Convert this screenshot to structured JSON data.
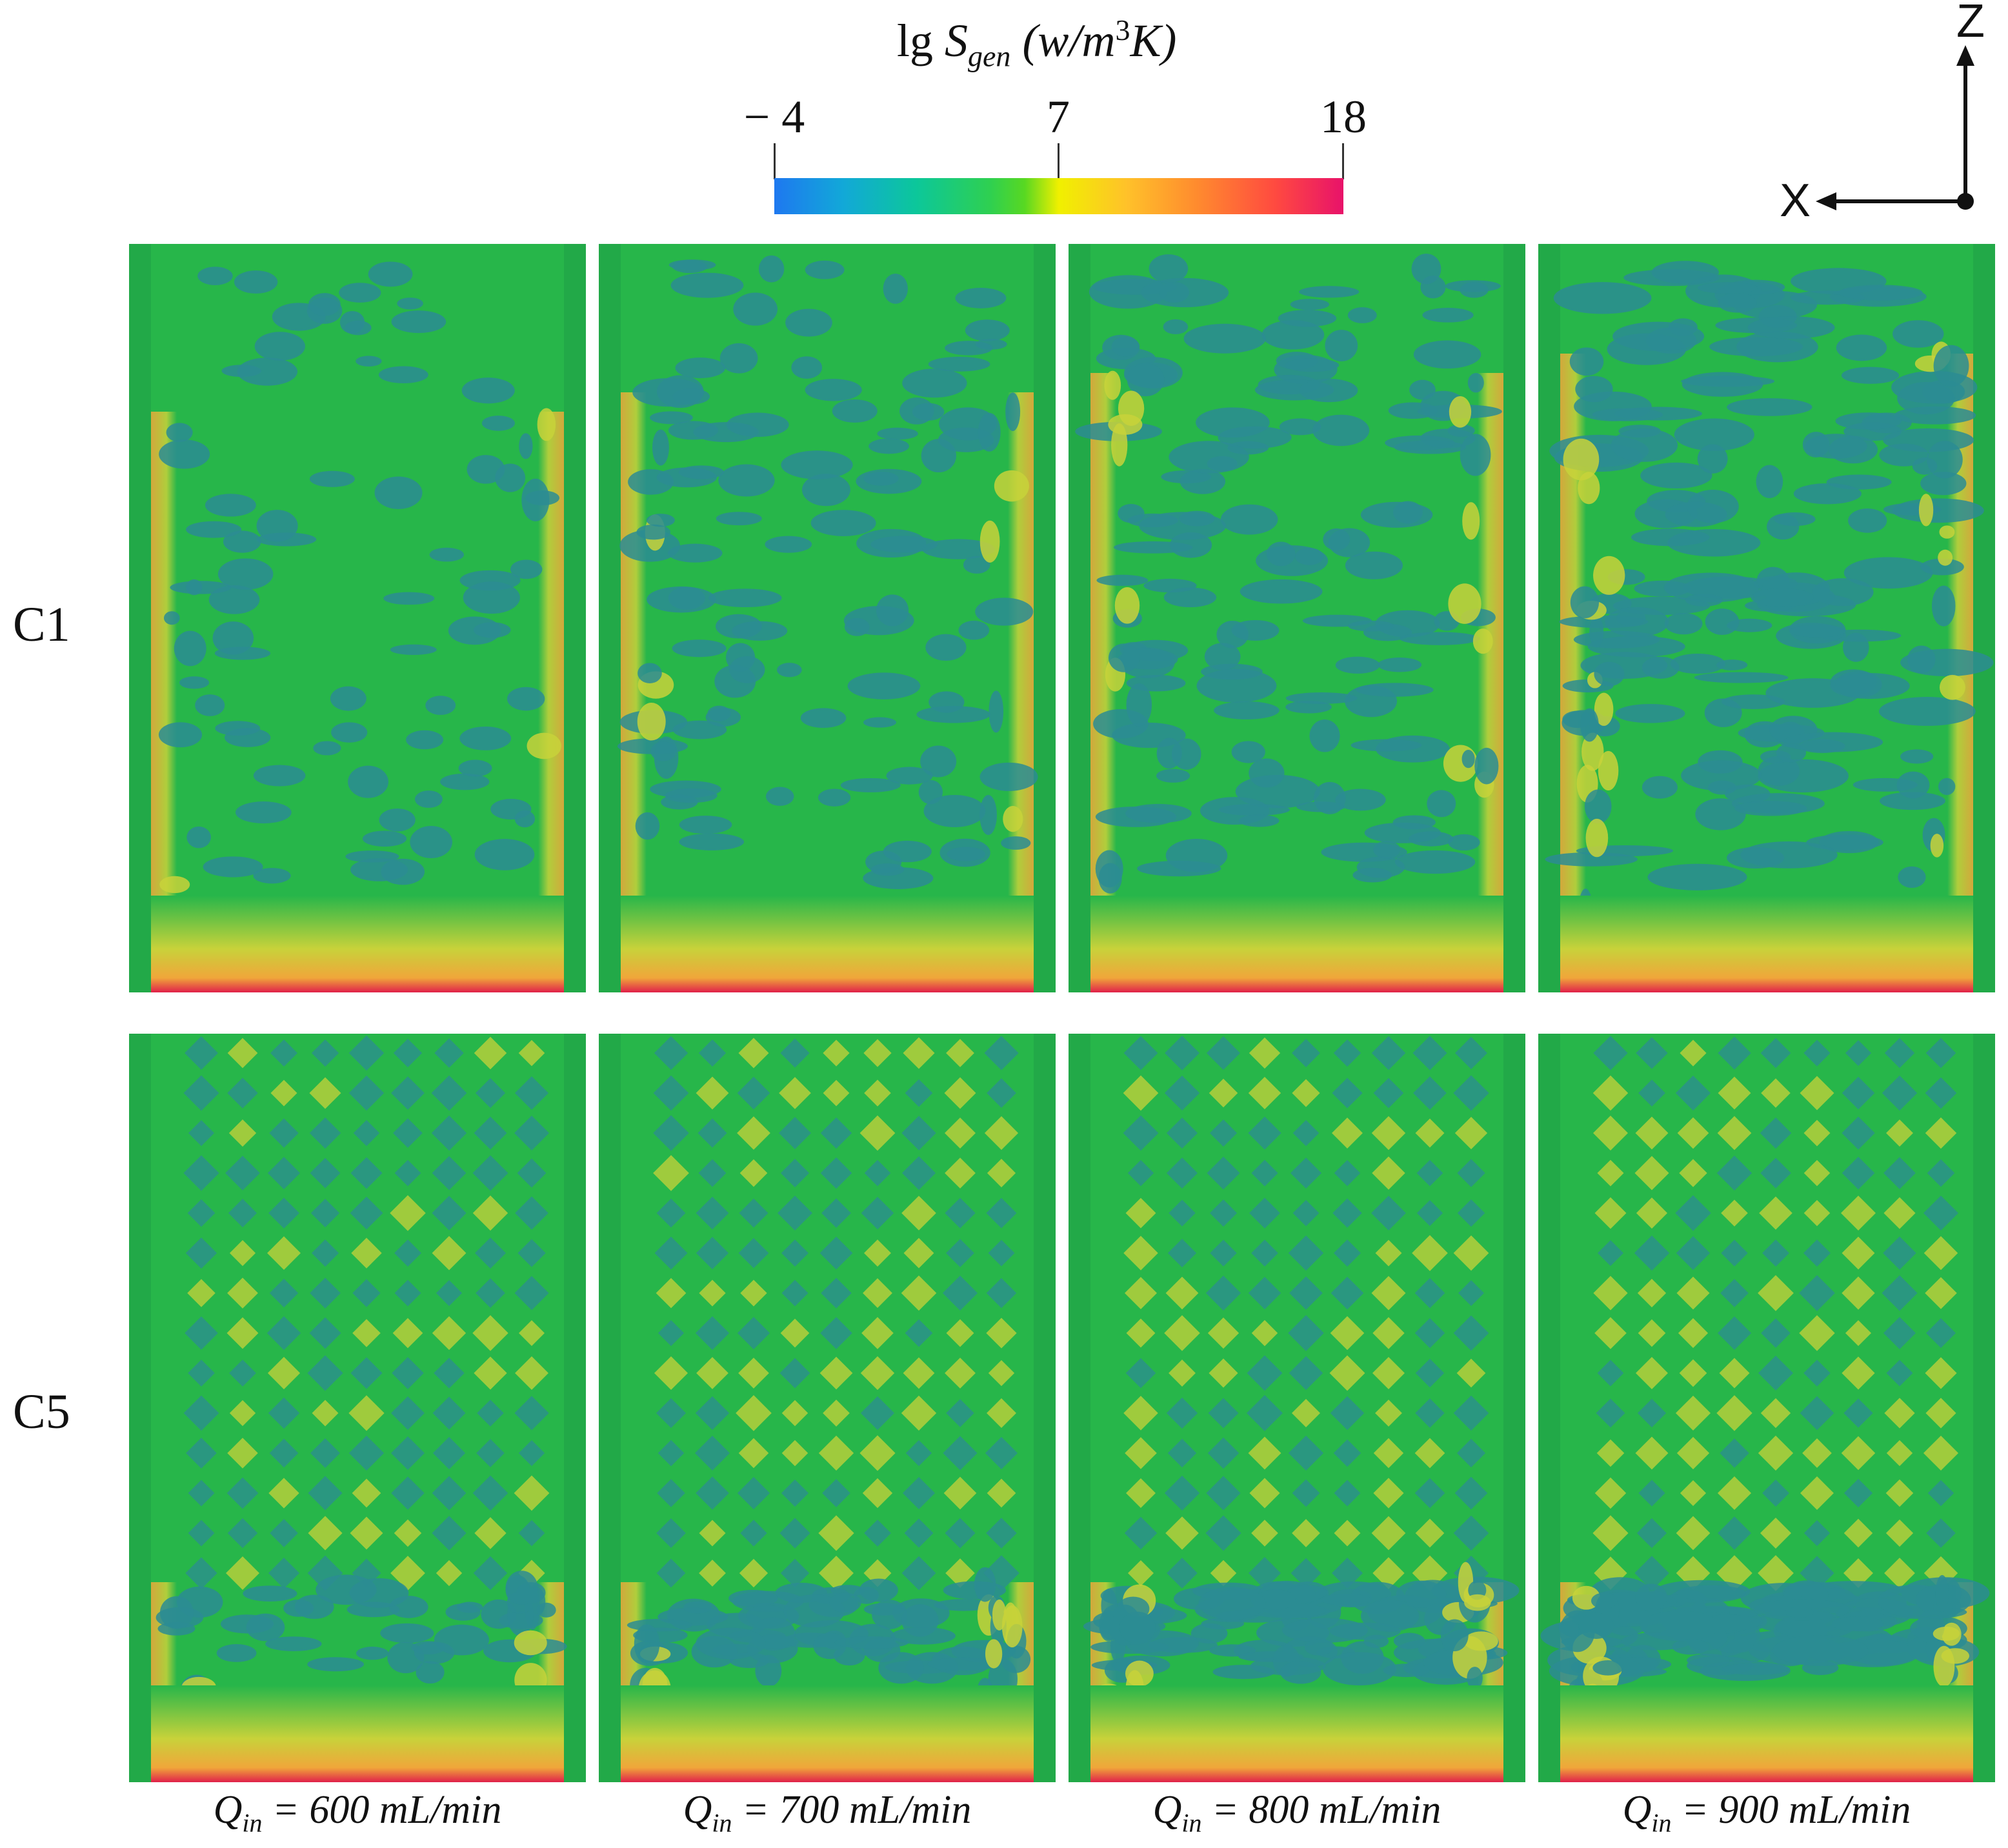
{
  "colorbar": {
    "title_prefix": "lg ",
    "symbol": "S",
    "subscript": "gen",
    "unit_open": " (w/m",
    "unit_power": "3",
    "unit_close": "K)",
    "ticks": [
      "− 4",
      "7",
      "18"
    ],
    "min": -4,
    "mid": 7,
    "max": 18,
    "colors": [
      "#1e78f0",
      "#0cc79a",
      "#58d822",
      "#f0f000",
      "#ff8c2e",
      "#e8126a"
    ]
  },
  "axes": {
    "vertical": "Z",
    "horizontal": "X"
  },
  "rows": [
    {
      "label": "C1",
      "structure": "open-channel"
    },
    {
      "label": "C5",
      "structure": "lattice"
    }
  ],
  "columns": [
    {
      "symbol": "Q",
      "sub": "in",
      "text": " = 600 mL/min",
      "flow": 600
    },
    {
      "symbol": "Q",
      "sub": "in",
      "text": " = 700 mL/min",
      "flow": 700
    },
    {
      "symbol": "Q",
      "sub": "in",
      "text": " = 800 mL/min",
      "flow": 800
    },
    {
      "symbol": "Q",
      "sub": "in",
      "text": " = 900 mL/min",
      "flow": 900
    }
  ]
}
